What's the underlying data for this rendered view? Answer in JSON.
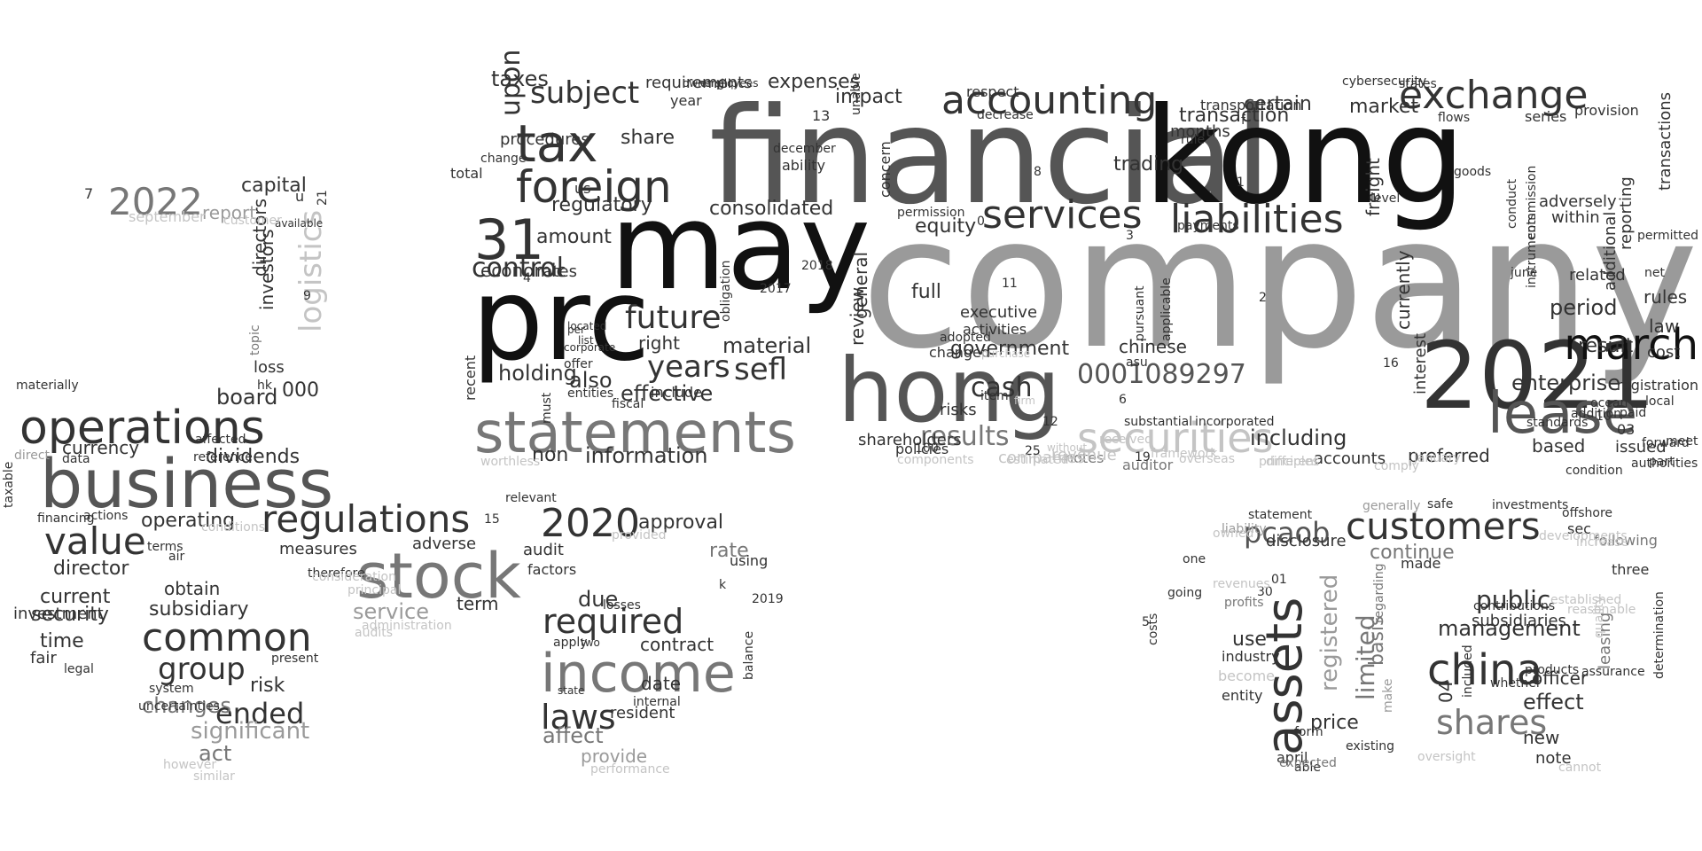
{
  "palette": {
    "black": "#111111",
    "dark": "#333333",
    "mid": "#555555",
    "gray": "#777777",
    "light": "#9a9a9a",
    "pale": "#c4c4c4",
    "background": "#ffffff"
  },
  "words": [
    {
      "text": "company",
      "tone": "light"
    },
    {
      "text": "financial",
      "tone": "mid"
    },
    {
      "text": "kong",
      "tone": "black"
    },
    {
      "text": "may",
      "tone": "black"
    },
    {
      "text": "prc",
      "tone": "black"
    },
    {
      "text": "hong",
      "tone": "mid"
    },
    {
      "text": "2021",
      "tone": "dark"
    },
    {
      "text": "statements",
      "tone": "gray"
    },
    {
      "text": "business",
      "tone": "mid"
    },
    {
      "text": "stock",
      "tone": "gray"
    },
    {
      "text": "income",
      "tone": "gray"
    },
    {
      "text": "securities",
      "tone": "pale"
    },
    {
      "text": "tax",
      "tone": "dark"
    },
    {
      "text": "foreign",
      "tone": "dark"
    },
    {
      "text": "accounting",
      "tone": "dark"
    },
    {
      "text": "exchange",
      "tone": "dark"
    },
    {
      "text": "services",
      "tone": "dark"
    },
    {
      "text": "liabilities",
      "tone": "dark"
    },
    {
      "text": "lease",
      "tone": "mid"
    },
    {
      "text": "march",
      "tone": "black"
    },
    {
      "text": "operations",
      "tone": "dark"
    },
    {
      "text": "regulations",
      "tone": "dark"
    },
    {
      "text": "customers",
      "tone": "dark"
    },
    {
      "text": "china",
      "tone": "dark"
    },
    {
      "text": "assets",
      "tone": "dark"
    },
    {
      "text": "value",
      "tone": "dark"
    },
    {
      "text": "common",
      "tone": "dark"
    },
    {
      "text": "31",
      "tone": "dark"
    },
    {
      "text": "2020",
      "tone": "dark"
    },
    {
      "text": "2022",
      "tone": "gray"
    },
    {
      "text": "required",
      "tone": "dark"
    },
    {
      "text": "laws",
      "tone": "dark"
    },
    {
      "text": "shares",
      "tone": "gray"
    },
    {
      "text": "future",
      "tone": "dark"
    },
    {
      "text": "years",
      "tone": "dark"
    },
    {
      "text": "sefl",
      "tone": "dark"
    },
    {
      "text": "subject",
      "tone": "dark"
    },
    {
      "text": "cash",
      "tone": "dark"
    },
    {
      "text": "results",
      "tone": "gray"
    },
    {
      "text": "0001089297",
      "tone": "mid"
    },
    {
      "text": "logistics",
      "tone": "pale"
    },
    {
      "text": "group",
      "tone": "dark"
    },
    {
      "text": "ended",
      "tone": "dark"
    },
    {
      "text": "pcaob",
      "tone": "mid"
    },
    {
      "text": "control",
      "tone": "dark"
    },
    {
      "text": "consolidated",
      "tone": "dark"
    },
    {
      "text": "management",
      "tone": "dark"
    },
    {
      "text": "public",
      "tone": "dark"
    },
    {
      "text": "limited",
      "tone": "gray"
    },
    {
      "text": "registered",
      "tone": "light"
    },
    {
      "text": "effect",
      "tone": "dark"
    },
    {
      "text": "enterprise",
      "tone": "dark"
    },
    {
      "text": "period",
      "tone": "dark"
    },
    {
      "text": "including",
      "tone": "dark"
    },
    {
      "text": "information",
      "tone": "dark"
    },
    {
      "text": "effective",
      "tone": "dark"
    },
    {
      "text": "also",
      "tone": "dark"
    },
    {
      "text": "holding",
      "tone": "dark"
    },
    {
      "text": "material",
      "tone": "dark"
    },
    {
      "text": "right",
      "tone": "dark"
    },
    {
      "text": "share",
      "tone": "dark"
    },
    {
      "text": "government",
      "tone": "dark"
    },
    {
      "text": "equity",
      "tone": "dark"
    },
    {
      "text": "full",
      "tone": "dark"
    },
    {
      "text": "trading",
      "tone": "dark"
    },
    {
      "text": "certain",
      "tone": "dark"
    },
    {
      "text": "market",
      "tone": "dark"
    },
    {
      "text": "transaction",
      "tone": "dark"
    },
    {
      "text": "impact",
      "tone": "dark"
    },
    {
      "text": "expenses",
      "tone": "dark"
    },
    {
      "text": "requirements",
      "tone": "dark"
    },
    {
      "text": "regulatory",
      "tone": "dark"
    },
    {
      "text": "amount",
      "tone": "dark"
    },
    {
      "text": "capital",
      "tone": "dark"
    },
    {
      "text": "board",
      "tone": "dark"
    },
    {
      "text": "dividends",
      "tone": "dark"
    },
    {
      "text": "currency",
      "tone": "dark"
    },
    {
      "text": "director",
      "tone": "dark"
    },
    {
      "text": "current",
      "tone": "dark"
    },
    {
      "text": "security",
      "tone": "dark"
    },
    {
      "text": "time",
      "tone": "dark"
    },
    {
      "text": "investment",
      "tone": "dark"
    },
    {
      "text": "subsidiary",
      "tone": "dark"
    },
    {
      "text": "obtain",
      "tone": "dark"
    },
    {
      "text": "risk",
      "tone": "dark"
    },
    {
      "text": "changes",
      "tone": "gray"
    },
    {
      "text": "significant",
      "tone": "light"
    },
    {
      "text": "act",
      "tone": "gray"
    },
    {
      "text": "service",
      "tone": "light"
    },
    {
      "text": "administration",
      "tone": "pale"
    },
    {
      "text": "affect",
      "tone": "gray"
    },
    {
      "text": "provide",
      "tone": "light"
    },
    {
      "text": "rate",
      "tone": "gray"
    },
    {
      "text": "due",
      "tone": "dark"
    },
    {
      "text": "contract",
      "tone": "dark"
    },
    {
      "text": "date",
      "tone": "dark"
    },
    {
      "text": "resident",
      "tone": "dark"
    },
    {
      "text": "approval",
      "tone": "dark"
    },
    {
      "text": "audit",
      "tone": "dark"
    },
    {
      "text": "term",
      "tone": "dark"
    },
    {
      "text": "adverse",
      "tone": "dark"
    },
    {
      "text": "measures",
      "tone": "dark"
    },
    {
      "text": "operating",
      "tone": "dark"
    },
    {
      "text": "report",
      "tone": "light"
    },
    {
      "text": "investors",
      "tone": "dark"
    },
    {
      "text": "directors",
      "tone": "dark"
    },
    {
      "text": "loss",
      "tone": "dark"
    },
    {
      "text": "000",
      "tone": "dark"
    },
    {
      "text": "continue",
      "tone": "gray"
    },
    {
      "text": "made",
      "tone": "dark"
    },
    {
      "text": "disclosure",
      "tone": "dark"
    },
    {
      "text": "statement",
      "tone": "dark"
    },
    {
      "text": "basis",
      "tone": "gray"
    },
    {
      "text": "price",
      "tone": "dark"
    },
    {
      "text": "use",
      "tone": "dark"
    },
    {
      "text": "industry",
      "tone": "dark"
    },
    {
      "text": "entity",
      "tone": "dark"
    },
    {
      "text": "april",
      "tone": "dark"
    },
    {
      "text": "officer",
      "tone": "dark"
    },
    {
      "text": "subsidiaries",
      "tone": "dark"
    },
    {
      "text": "new",
      "tone": "dark"
    },
    {
      "text": "note",
      "tone": "dark"
    },
    {
      "text": "sec",
      "tone": "dark"
    },
    {
      "text": "following",
      "tone": "gray"
    },
    {
      "text": "three",
      "tone": "dark"
    },
    {
      "text": "leasing",
      "tone": "gray"
    },
    {
      "text": "rules",
      "tone": "dark"
    },
    {
      "text": "law",
      "tone": "dark"
    },
    {
      "text": "cost",
      "tone": "dark"
    },
    {
      "text": "based",
      "tone": "dark"
    },
    {
      "text": "issued",
      "tone": "dark"
    },
    {
      "text": "authorities",
      "tone": "dark"
    },
    {
      "text": "result",
      "tone": "dark"
    },
    {
      "text": "related",
      "tone": "dark"
    },
    {
      "text": "additional",
      "tone": "dark"
    },
    {
      "text": "reporting",
      "tone": "dark"
    },
    {
      "text": "transactions",
      "tone": "dark"
    },
    {
      "text": "adversely",
      "tone": "dark"
    },
    {
      "text": "within",
      "tone": "dark"
    },
    {
      "text": "series",
      "tone": "dark"
    },
    {
      "text": "provision",
      "tone": "dark"
    },
    {
      "text": "freight",
      "tone": "dark"
    },
    {
      "text": "currently",
      "tone": "dark"
    },
    {
      "text": "interest",
      "tone": "dark"
    },
    {
      "text": "preferred",
      "tone": "dark"
    },
    {
      "text": "accounts",
      "tone": "dark"
    },
    {
      "text": "notes",
      "tone": "gray"
    },
    {
      "text": "auditor",
      "tone": "gray"
    },
    {
      "text": "revenue",
      "tone": "pale"
    },
    {
      "text": "companies",
      "tone": "pale"
    },
    {
      "text": "policies",
      "tone": "dark"
    },
    {
      "text": "shareholders",
      "tone": "dark"
    },
    {
      "text": "risks",
      "tone": "dark"
    },
    {
      "text": "item",
      "tone": "dark"
    },
    {
      "text": "12",
      "tone": "dark"
    },
    {
      "text": "chinese",
      "tone": "dark"
    },
    {
      "text": "asu",
      "tone": "dark"
    },
    {
      "text": "non",
      "tone": "dark"
    },
    {
      "text": "economic",
      "tone": "dark"
    },
    {
      "text": "rates",
      "tone": "dark"
    },
    {
      "text": "procedures",
      "tone": "dark"
    },
    {
      "text": "total",
      "tone": "dark"
    },
    {
      "text": "change",
      "tone": "dark"
    },
    {
      "text": "us",
      "tone": "dark"
    },
    {
      "text": "year",
      "tone": "dark"
    },
    {
      "text": "taxes",
      "tone": "dark"
    },
    {
      "text": "upon",
      "tone": "dark"
    },
    {
      "text": "ability",
      "tone": "dark"
    },
    {
      "text": "december",
      "tone": "dark"
    },
    {
      "text": "general",
      "tone": "dark"
    },
    {
      "text": "review",
      "tone": "dark"
    },
    {
      "text": "executive",
      "tone": "dark"
    },
    {
      "text": "activities",
      "tone": "dark"
    },
    {
      "text": "changed",
      "tone": "dark"
    },
    {
      "text": "respect",
      "tone": "dark"
    },
    {
      "text": "months",
      "tone": "dark"
    },
    {
      "text": "rule",
      "tone": "dark"
    },
    {
      "text": "payments",
      "tone": "dark"
    },
    {
      "text": "transportation",
      "tone": "dark"
    },
    {
      "text": "concern",
      "tone": "dark"
    },
    {
      "text": "decrease",
      "tone": "dark"
    },
    {
      "text": "permission",
      "tone": "dark"
    },
    {
      "text": "adopted",
      "tone": "dark"
    },
    {
      "text": "substantial",
      "tone": "dark"
    },
    {
      "text": "incorporated",
      "tone": "dark"
    },
    {
      "text": "applicable",
      "tone": "dark"
    },
    {
      "text": "pursuant",
      "tone": "dark"
    },
    {
      "text": "include",
      "tone": "dark"
    },
    {
      "text": "entities",
      "tone": "dark"
    },
    {
      "text": "fiscal",
      "tone": "dark"
    },
    {
      "text": "addition",
      "tone": "dark"
    },
    {
      "text": "ocean",
      "tone": "dark"
    },
    {
      "text": "paid",
      "tone": "dark"
    },
    {
      "text": "standards",
      "tone": "dark"
    },
    {
      "text": "local",
      "tone": "dark"
    },
    {
      "text": "condition",
      "tone": "dark"
    },
    {
      "text": "part",
      "tone": "dark"
    },
    {
      "text": "forward",
      "tone": "dark"
    },
    {
      "text": "net",
      "tone": "dark"
    },
    {
      "text": "meet",
      "tone": "dark"
    },
    {
      "text": "10",
      "tone": "dark"
    },
    {
      "text": "03",
      "tone": "dark"
    },
    {
      "text": "registration",
      "tone": "dark"
    },
    {
      "text": "conduct",
      "tone": "dark"
    },
    {
      "text": "instruments",
      "tone": "dark"
    },
    {
      "text": "commission",
      "tone": "dark"
    },
    {
      "text": "goods",
      "tone": "dark"
    },
    {
      "text": "june",
      "tone": "dark"
    },
    {
      "text": "flows",
      "tone": "dark"
    },
    {
      "text": "states",
      "tone": "dark"
    },
    {
      "text": "cybersecurity",
      "tone": "dark"
    },
    {
      "text": "recent",
      "tone": "dark"
    },
    {
      "text": "must",
      "tone": "dark"
    },
    {
      "text": "obligation",
      "tone": "dark"
    },
    {
      "text": "unable",
      "tone": "dark"
    },
    {
      "text": "2017",
      "tone": "dark"
    },
    {
      "text": "2018",
      "tone": "dark"
    },
    {
      "text": "13",
      "tone": "dark"
    },
    {
      "text": "b",
      "tone": "dark"
    },
    {
      "text": "employees",
      "tone": "dark"
    },
    {
      "text": "ownership",
      "tone": "dark"
    },
    {
      "text": "offer",
      "tone": "dark"
    },
    {
      "text": "corporate",
      "tone": "dark"
    },
    {
      "text": "list",
      "tone": "dark"
    },
    {
      "text": "per",
      "tone": "dark"
    },
    {
      "text": "located",
      "tone": "dark"
    },
    {
      "text": "available",
      "tone": "dark"
    },
    {
      "text": "u",
      "tone": "dark"
    },
    {
      "text": "21",
      "tone": "dark"
    },
    {
      "text": "7",
      "tone": "dark"
    },
    {
      "text": "september",
      "tone": "pale"
    },
    {
      "text": "relevant",
      "tone": "dark"
    },
    {
      "text": "15",
      "tone": "dark"
    },
    {
      "text": "factors",
      "tone": "dark"
    },
    {
      "text": "using",
      "tone": "dark"
    },
    {
      "text": "2019",
      "tone": "dark"
    },
    {
      "text": "k",
      "tone": "dark"
    },
    {
      "text": "losses",
      "tone": "dark"
    },
    {
      "text": "apply",
      "tone": "dark"
    },
    {
      "text": "two",
      "tone": "dark"
    },
    {
      "text": "state",
      "tone": "dark"
    },
    {
      "text": "internal",
      "tone": "dark"
    },
    {
      "text": "balance",
      "tone": "dark"
    },
    {
      "text": "principal",
      "tone": "pale"
    },
    {
      "text": "therefore",
      "tone": "dark"
    },
    {
      "text": "present",
      "tone": "dark"
    },
    {
      "text": "system",
      "tone": "dark"
    },
    {
      "text": "uncertainties",
      "tone": "dark"
    },
    {
      "text": "fair",
      "tone": "dark"
    },
    {
      "text": "legal",
      "tone": "dark"
    },
    {
      "text": "direct",
      "tone": "light"
    },
    {
      "text": "data",
      "tone": "dark"
    },
    {
      "text": "affected",
      "tone": "dark"
    },
    {
      "text": "reference",
      "tone": "dark"
    },
    {
      "text": "terms",
      "tone": "dark"
    },
    {
      "text": "air",
      "tone": "dark"
    },
    {
      "text": "financing",
      "tone": "dark"
    },
    {
      "text": "actions",
      "tone": "dark"
    },
    {
      "text": "taxable",
      "tone": "dark"
    },
    {
      "text": "materially",
      "tone": "dark"
    },
    {
      "text": "hk",
      "tone": "dark"
    },
    {
      "text": "one",
      "tone": "dark"
    },
    {
      "text": "going",
      "tone": "dark"
    },
    {
      "text": "costs",
      "tone": "dark"
    },
    {
      "text": "profits",
      "tone": "gray"
    },
    {
      "text": "form",
      "tone": "dark"
    },
    {
      "text": "existing",
      "tone": "dark"
    },
    {
      "text": "able",
      "tone": "dark"
    },
    {
      "text": "expected",
      "tone": "gray"
    },
    {
      "text": "become",
      "tone": "pale"
    },
    {
      "text": "5",
      "tone": "dark"
    },
    {
      "text": "04",
      "tone": "dark"
    },
    {
      "text": "whether",
      "tone": "dark"
    },
    {
      "text": "products",
      "tone": "dark"
    },
    {
      "text": "included",
      "tone": "dark"
    },
    {
      "text": "assurance",
      "tone": "dark"
    },
    {
      "text": "determination",
      "tone": "dark"
    },
    {
      "text": "01",
      "tone": "dark"
    },
    {
      "text": "regarding",
      "tone": "gray"
    },
    {
      "text": "make",
      "tone": "light"
    },
    {
      "text": "liability",
      "tone": "light"
    },
    {
      "text": "generally",
      "tone": "light"
    },
    {
      "text": "safe",
      "tone": "dark"
    },
    {
      "text": "investments",
      "tone": "dark"
    },
    {
      "text": "offshore",
      "tone": "dark"
    },
    {
      "text": "contributions",
      "tone": "dark"
    },
    {
      "text": "level",
      "tone": "dark"
    },
    {
      "text": "permitted",
      "tone": "dark"
    },
    {
      "text": "1",
      "tone": "dark"
    },
    {
      "text": "f",
      "tone": "dark"
    },
    {
      "text": "2",
      "tone": "dark"
    },
    {
      "text": "4",
      "tone": "dark"
    },
    {
      "text": "9",
      "tone": "dark"
    },
    {
      "text": "3",
      "tone": "dark"
    },
    {
      "text": "8",
      "tone": "dark"
    },
    {
      "text": "6",
      "tone": "dark"
    },
    {
      "text": "0",
      "tone": "dark"
    },
    {
      "text": "11",
      "tone": "dark"
    },
    {
      "text": "16",
      "tone": "dark"
    },
    {
      "text": "30",
      "tone": "dark"
    },
    {
      "text": "100",
      "tone": "dark"
    },
    {
      "text": "25",
      "tone": "dark"
    },
    {
      "text": "19",
      "tone": "dark"
    },
    {
      "text": "overseas",
      "tone": "pale"
    },
    {
      "text": "topic",
      "tone": "gray"
    },
    {
      "text": "conditions",
      "tone": "pale"
    },
    {
      "text": "provided",
      "tone": "pale"
    },
    {
      "text": "performance",
      "tone": "pale"
    },
    {
      "text": "cannot",
      "tone": "pale"
    },
    {
      "text": "increase",
      "tone": "pale"
    },
    {
      "text": "components",
      "tone": "pale"
    },
    {
      "text": "estimated",
      "tone": "pale"
    },
    {
      "text": "customer",
      "tone": "pale"
    },
    {
      "text": "similar",
      "tone": "pale"
    },
    {
      "text": "however",
      "tone": "pale"
    },
    {
      "text": "consideration",
      "tone": "pale"
    },
    {
      "text": "audits",
      "tone": "pale"
    },
    {
      "text": "revenues",
      "tone": "pale"
    },
    {
      "text": "oversight",
      "tone": "pale"
    },
    {
      "text": "established",
      "tone": "pale"
    },
    {
      "text": "reasonable",
      "tone": "pale"
    },
    {
      "text": "quality",
      "tone": "pale"
    },
    {
      "text": "developments",
      "tone": "pale"
    },
    {
      "text": "january",
      "tone": "pale"
    },
    {
      "text": "principles",
      "tone": "pale"
    },
    {
      "text": "received",
      "tone": "pale"
    },
    {
      "text": "framework",
      "tone": "pale"
    },
    {
      "text": "worthless",
      "tone": "pale"
    },
    {
      "text": "different",
      "tone": "pale"
    },
    {
      "text": "owned",
      "tone": "pale"
    },
    {
      "text": "comply",
      "tone": "pale"
    },
    {
      "text": "purchase",
      "tone": "pale"
    },
    {
      "text": "firm",
      "tone": "pale"
    },
    {
      "text": "without",
      "tone": "pale"
    }
  ]
}
